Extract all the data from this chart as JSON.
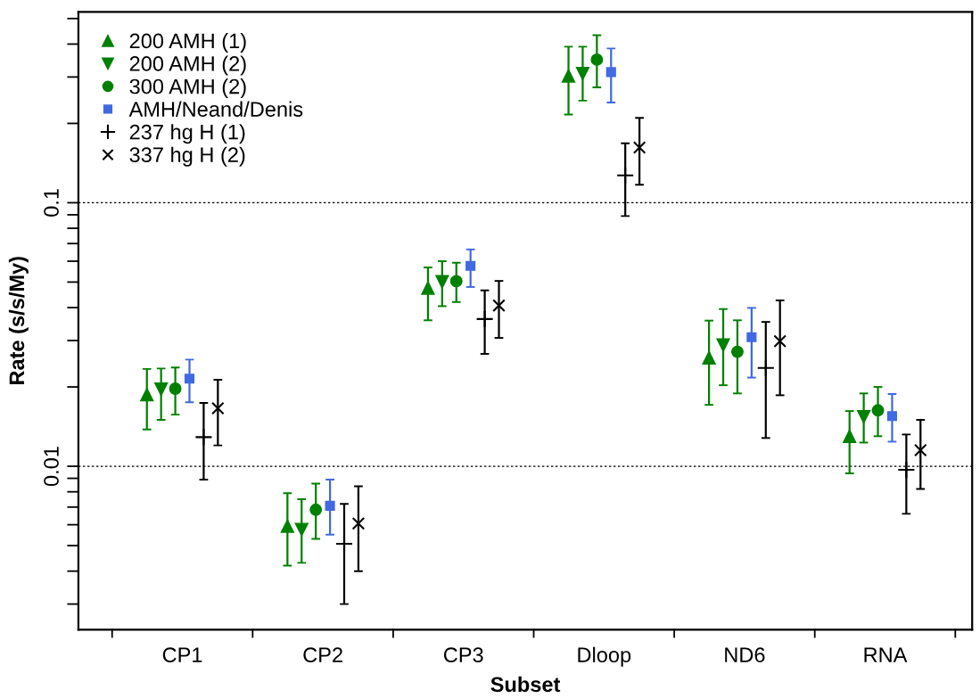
{
  "chart_data": {
    "type": "scatter",
    "xlabel": "Subset",
    "ylabel": "Rate (s/s/My)",
    "categories": [
      "CP1",
      "CP2",
      "CP3",
      "Dloop",
      "ND6",
      "RNA"
    ],
    "log": "y",
    "ylim": [
      0.0024,
      0.53
    ],
    "yticks": [
      {
        "value": 0.003,
        "label": null
      },
      {
        "value": 0.004,
        "label": null
      },
      {
        "value": 0.005,
        "label": null
      },
      {
        "value": 0.006,
        "label": null
      },
      {
        "value": 0.007,
        "label": null
      },
      {
        "value": 0.008,
        "label": null
      },
      {
        "value": 0.009,
        "label": null
      },
      0.01,
      {
        "value": 0.02,
        "label": null
      },
      {
        "value": 0.03,
        "label": null
      },
      {
        "value": 0.04,
        "label": null
      },
      {
        "value": 0.05,
        "label": null
      },
      {
        "value": 0.06,
        "label": null
      },
      {
        "value": 0.07,
        "label": null
      },
      {
        "value": 0.08,
        "label": null
      },
      {
        "value": 0.09,
        "label": null
      },
      0.1,
      {
        "value": 0.2,
        "label": null
      },
      {
        "value": 0.3,
        "label": null
      },
      {
        "value": 0.4,
        "label": null
      },
      {
        "value": 0.5,
        "label": null
      }
    ],
    "grid": false,
    "legend": "top left",
    "ref_lines": [
      {
        "axis": "y",
        "value": 0.1,
        "color": "#000000",
        "line_style": "dotted"
      },
      {
        "axis": "y",
        "value": 0.01,
        "color": "#000000",
        "line_style": "dotted"
      }
    ],
    "series": [
      {
        "name": "200 AMH (1)",
        "color": "#008000",
        "marker": "triangle",
        "values": [
          0.0187,
          0.00593,
          0.0475,
          0.303,
          0.0258,
          0.013
        ],
        "errors": [
          [
            0.0138,
            0.0234
          ],
          [
            0.0042,
            0.0079
          ],
          [
            0.0358,
            0.0568
          ],
          [
            0.216,
            0.391
          ],
          [
            0.0171,
            0.0357
          ],
          [
            0.0094,
            0.0162
          ]
        ]
      },
      {
        "name": "200 AMH (2)",
        "color": "#008000",
        "marker": "triangle_down",
        "values": [
          0.0196,
          0.00575,
          0.0501,
          0.309,
          0.0288,
          0.0154
        ],
        "errors": [
          [
            0.015,
            0.0235
          ],
          [
            0.0043,
            0.0075
          ],
          [
            0.0405,
            0.06
          ],
          [
            0.244,
            0.391
          ],
          [
            0.0203,
            0.0395
          ],
          [
            0.0123,
            0.0189
          ]
        ]
      },
      {
        "name": "300 AMH (2)",
        "color": "#008000",
        "marker": "circle",
        "values": [
          0.0197,
          0.00684,
          0.0504,
          0.349,
          0.0272,
          0.0163
        ],
        "errors": [
          [
            0.0157,
            0.0237
          ],
          [
            0.0053,
            0.0086
          ],
          [
            0.042,
            0.0592
          ],
          [
            0.274,
            0.432
          ],
          [
            0.0189,
            0.0358
          ],
          [
            0.013,
            0.02
          ]
        ]
      },
      {
        "name": "AMH/Neand/Denis",
        "color": "#4169e1",
        "marker": "square",
        "values": [
          0.0215,
          0.00708,
          0.0576,
          0.313,
          0.0309,
          0.0155
        ],
        "errors": [
          [
            0.0175,
            0.0254
          ],
          [
            0.0055,
            0.0089
          ],
          [
            0.0479,
            0.0665
          ],
          [
            0.24,
            0.385
          ],
          [
            0.0217,
            0.0399
          ],
          [
            0.0124,
            0.0188
          ]
        ]
      },
      {
        "name": "237 hg H (1)",
        "color": "#000000",
        "marker": "plus",
        "values": [
          0.0129,
          0.00508,
          0.0362,
          0.127,
          0.0236,
          0.0097
        ],
        "errors": [
          [
            0.0089,
            0.0174
          ],
          [
            0.003,
            0.0072
          ],
          [
            0.0267,
            0.0465
          ],
          [
            0.089,
            0.168
          ],
          [
            0.0128,
            0.0353
          ],
          [
            0.0066,
            0.0132
          ]
        ]
      },
      {
        "name": "337 hg H (2)",
        "color": "#000000",
        "marker": "cross",
        "values": [
          0.0166,
          0.00606,
          0.0407,
          0.162,
          0.0298,
          0.0115
        ],
        "errors": [
          [
            0.012,
            0.0213
          ],
          [
            0.004,
            0.0084
          ],
          [
            0.0307,
            0.0505
          ],
          [
            0.117,
            0.21
          ],
          [
            0.0186,
            0.0426
          ],
          [
            0.0082,
            0.015
          ]
        ]
      }
    ]
  }
}
